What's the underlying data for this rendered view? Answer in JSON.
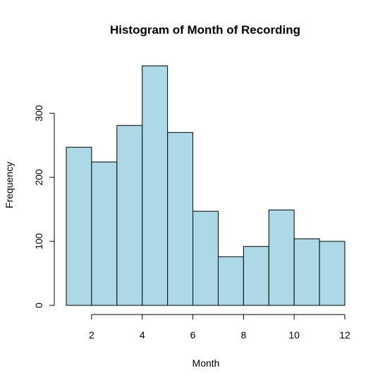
{
  "chart_data": {
    "type": "histogram",
    "title": "Histogram of Month of Recording",
    "xlabel": "Month",
    "ylabel": "Frequency",
    "bin_edges": [
      1,
      2,
      3,
      4,
      5,
      6,
      7,
      8,
      9,
      10,
      11,
      12
    ],
    "counts": [
      247,
      224,
      281,
      374,
      270,
      147,
      76,
      92,
      149,
      104,
      100
    ],
    "xlim": [
      1,
      12
    ],
    "ylim": [
      0,
      374
    ],
    "x_ticks": [
      2,
      4,
      6,
      8,
      10,
      12
    ],
    "y_ticks": [
      0,
      100,
      200,
      300
    ],
    "bar_fill": "#add8e6",
    "bar_stroke": "#000000",
    "grid": false,
    "legend": "none"
  }
}
